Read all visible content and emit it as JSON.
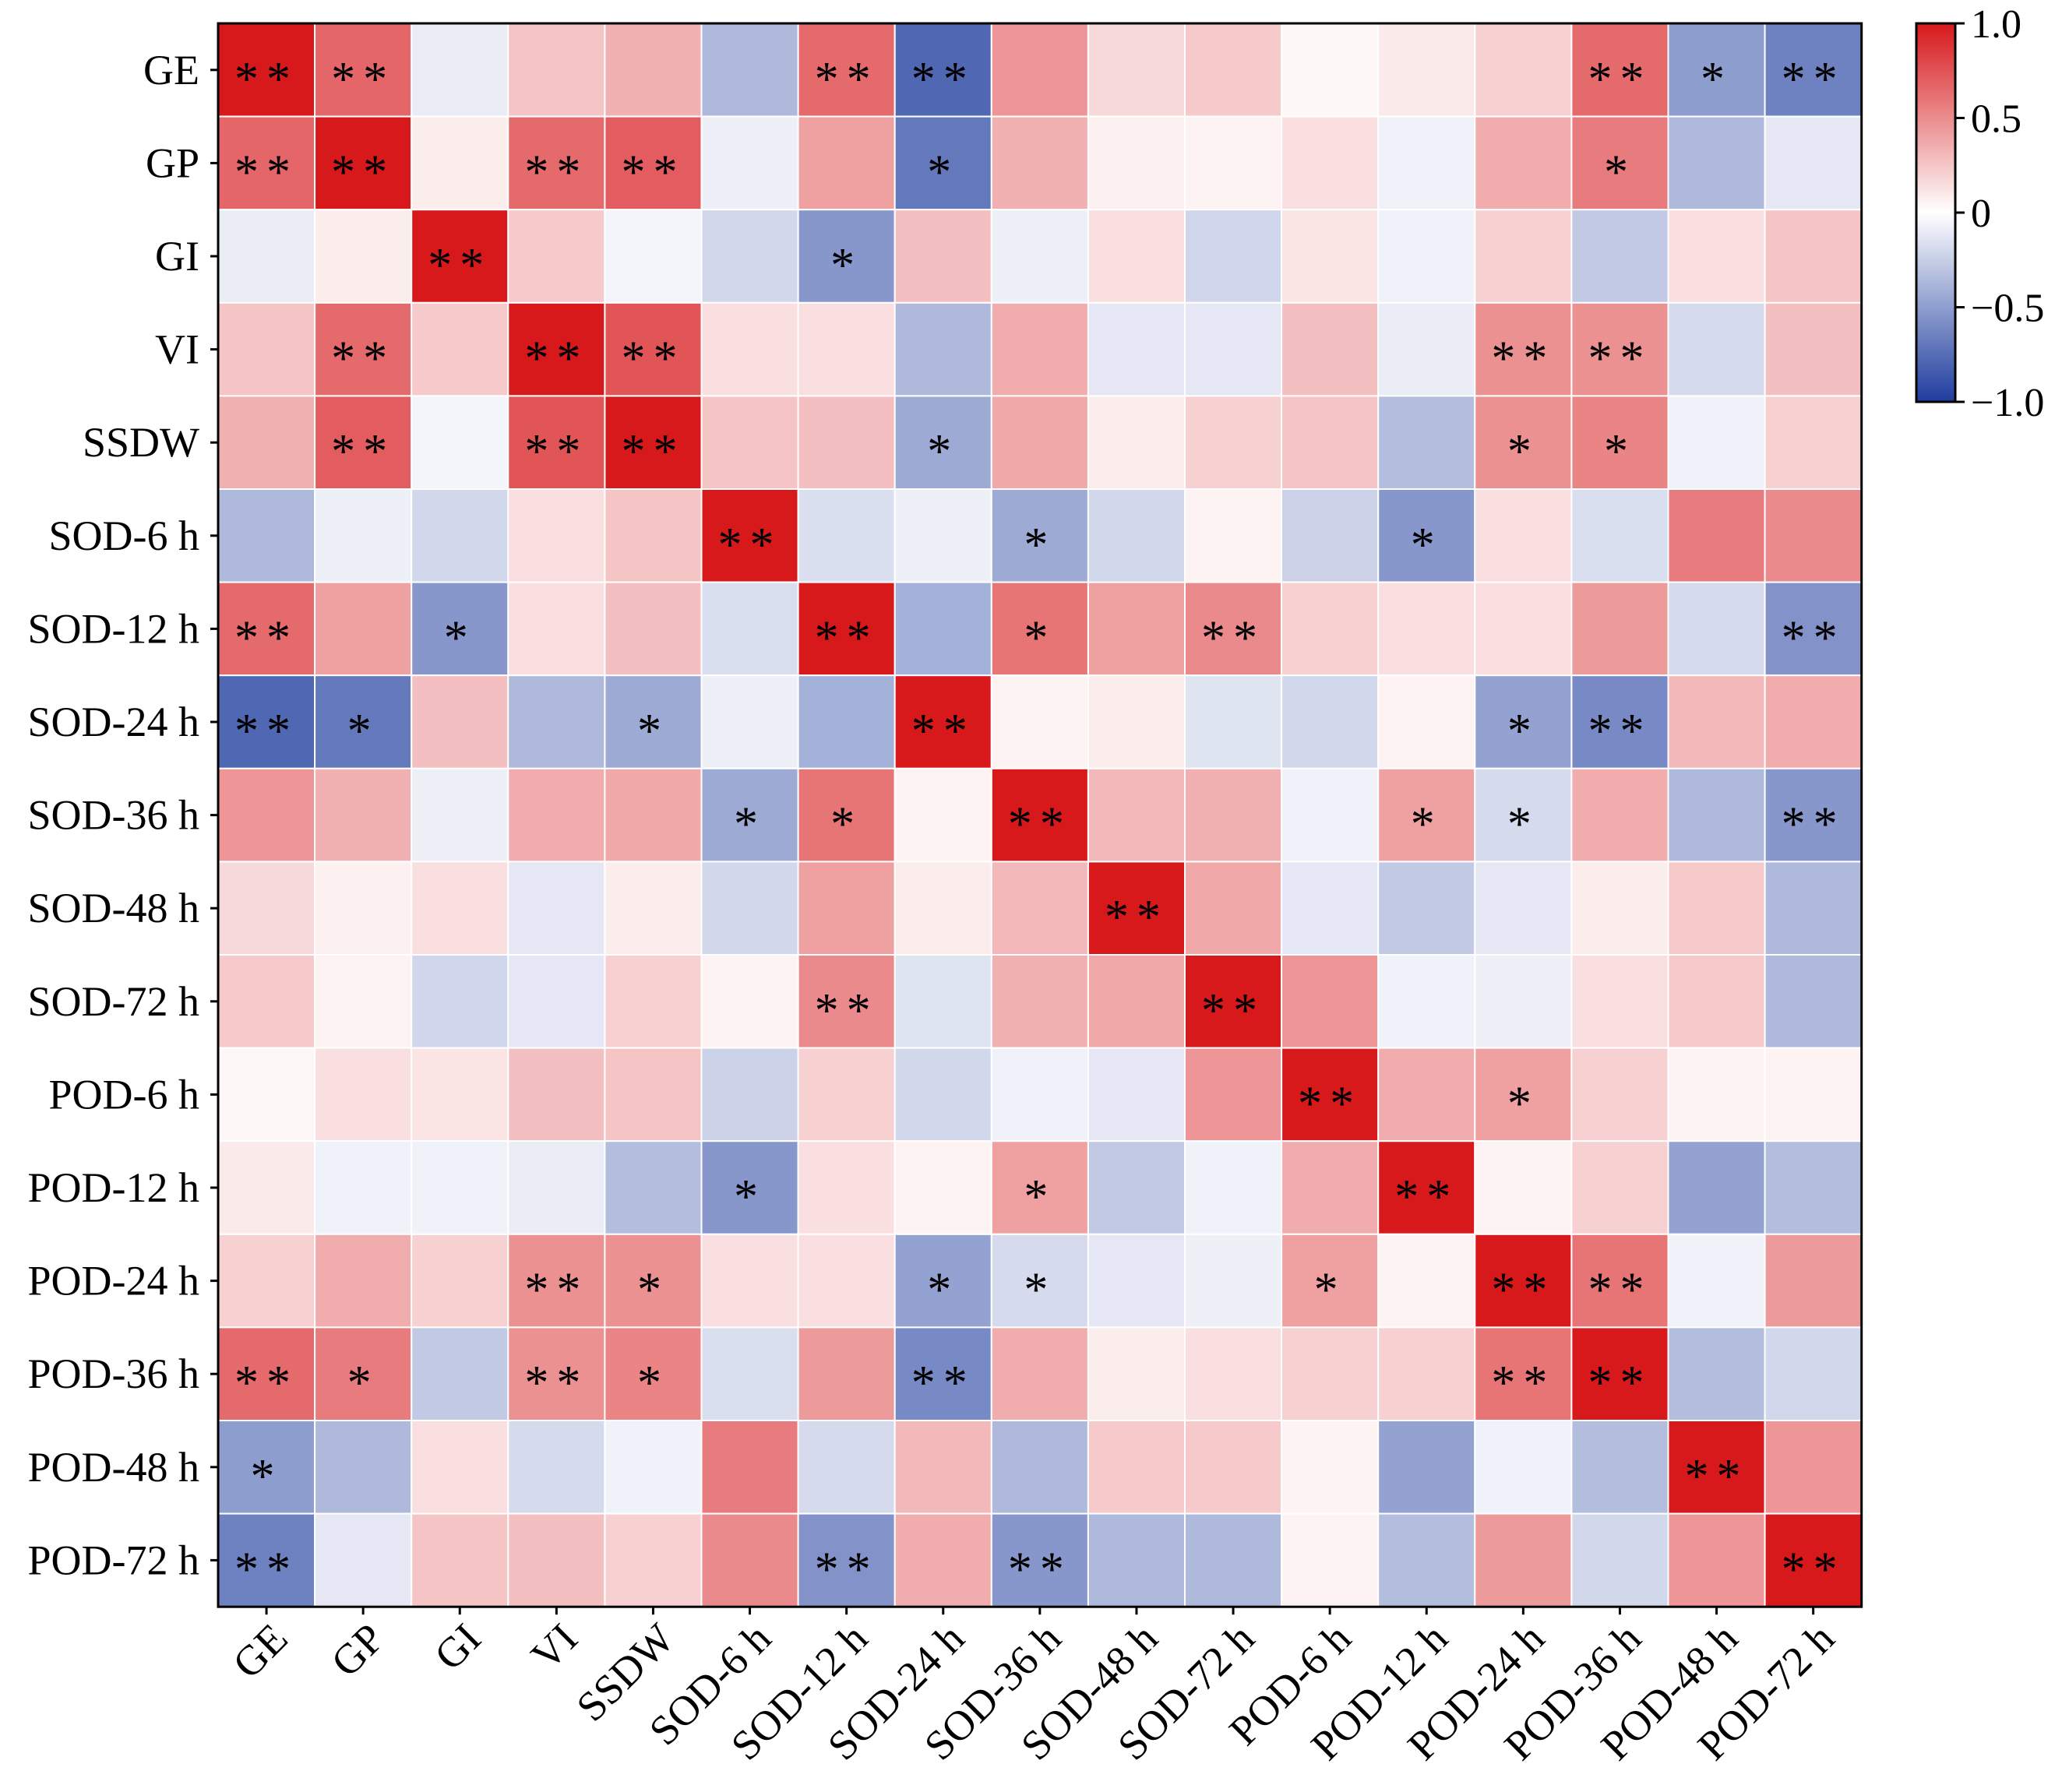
{
  "chart_data": {
    "type": "heatmap",
    "title": "",
    "xlabel": "",
    "ylabel": "",
    "rows": [
      "GE",
      "GP",
      "GI",
      "VI",
      "SSDW",
      "SOD-6 h",
      "SOD-12 h",
      "SOD-24 h",
      "SOD-36 h",
      "SOD-48 h",
      "SOD-72 h",
      "POD-6 h",
      "POD-12 h",
      "POD-24 h",
      "POD-36 h",
      "POD-48 h",
      "POD-72 h"
    ],
    "columns": [
      "GE",
      "GP",
      "GI",
      "VI",
      "SSDW",
      "SOD-6 h",
      "SOD-12 h",
      "SOD-24 h",
      "SOD-36 h",
      "SOD-48 h",
      "SOD-72 h",
      "POD-6 h",
      "POD-12 h",
      "POD-24 h",
      "POD-36 h",
      "POD-48 h",
      "POD-72 h"
    ],
    "values": [
      [
        1.0,
        0.62,
        -0.06,
        0.2,
        0.28,
        -0.3,
        0.6,
        -0.75,
        0.4,
        0.12,
        0.18,
        0.02,
        0.06,
        0.15,
        0.6,
        -0.45,
        -0.6
      ],
      [
        0.62,
        1.0,
        0.05,
        0.6,
        0.66,
        -0.05,
        0.35,
        -0.65,
        0.28,
        0.04,
        0.03,
        0.1,
        -0.04,
        0.3,
        0.52,
        -0.3,
        -0.08
      ],
      [
        -0.06,
        0.05,
        1.0,
        0.18,
        -0.03,
        -0.15,
        -0.48,
        0.22,
        -0.05,
        0.1,
        -0.16,
        0.08,
        -0.04,
        0.15,
        -0.22,
        0.1,
        0.2
      ],
      [
        0.2,
        0.6,
        0.18,
        1.0,
        0.7,
        0.1,
        0.1,
        -0.3,
        0.3,
        -0.08,
        -0.08,
        0.22,
        -0.06,
        0.42,
        0.42,
        -0.14,
        0.22
      ],
      [
        0.28,
        0.66,
        -0.03,
        0.7,
        1.0,
        0.2,
        0.22,
        -0.38,
        0.32,
        0.05,
        0.15,
        0.2,
        -0.28,
        0.42,
        0.48,
        -0.04,
        0.15
      ],
      [
        -0.3,
        -0.05,
        -0.15,
        0.1,
        0.2,
        1.0,
        -0.12,
        -0.05,
        -0.38,
        -0.15,
        0.03,
        -0.18,
        -0.48,
        0.1,
        -0.12,
        0.52,
        0.45
      ],
      [
        0.6,
        0.35,
        -0.48,
        0.1,
        0.22,
        -0.12,
        1.0,
        -0.35,
        0.55,
        0.35,
        0.45,
        0.15,
        0.1,
        0.1,
        0.38,
        -0.14,
        -0.5
      ],
      [
        -0.75,
        -0.65,
        0.22,
        -0.3,
        -0.38,
        -0.05,
        -0.35,
        1.0,
        0.03,
        0.05,
        -0.1,
        -0.15,
        0.03,
        -0.42,
        -0.55,
        0.25,
        0.3
      ],
      [
        0.4,
        0.28,
        -0.05,
        0.3,
        0.32,
        -0.38,
        0.55,
        0.03,
        1.0,
        0.25,
        0.28,
        -0.04,
        0.35,
        -0.14,
        0.3,
        -0.3,
        -0.48
      ],
      [
        0.12,
        0.04,
        0.1,
        -0.08,
        0.05,
        -0.15,
        0.35,
        0.05,
        0.25,
        1.0,
        0.32,
        -0.08,
        -0.22,
        -0.08,
        0.05,
        0.18,
        -0.3
      ],
      [
        0.18,
        0.03,
        -0.16,
        -0.08,
        0.15,
        0.03,
        0.45,
        -0.1,
        0.28,
        0.32,
        1.0,
        0.4,
        -0.04,
        -0.05,
        0.1,
        0.18,
        -0.3
      ],
      [
        0.02,
        0.1,
        0.08,
        0.22,
        0.2,
        -0.18,
        0.15,
        -0.15,
        -0.04,
        -0.08,
        0.4,
        1.0,
        0.3,
        0.35,
        0.15,
        0.03,
        0.03
      ],
      [
        0.06,
        -0.04,
        -0.04,
        -0.06,
        -0.28,
        -0.48,
        0.1,
        0.03,
        0.35,
        -0.22,
        -0.04,
        0.3,
        1.0,
        0.03,
        0.15,
        -0.42,
        -0.28
      ],
      [
        0.15,
        0.3,
        0.15,
        0.42,
        0.42,
        0.1,
        0.1,
        -0.42,
        -0.14,
        -0.08,
        -0.05,
        0.35,
        0.03,
        1.0,
        0.55,
        -0.04,
        0.38
      ],
      [
        0.6,
        0.52,
        -0.22,
        0.42,
        0.48,
        -0.12,
        0.38,
        -0.55,
        0.3,
        0.05,
        0.1,
        0.15,
        0.15,
        0.55,
        1.0,
        -0.28,
        -0.15
      ],
      [
        -0.45,
        -0.3,
        0.1,
        -0.14,
        -0.04,
        0.52,
        -0.14,
        0.25,
        -0.3,
        0.18,
        0.18,
        0.03,
        -0.42,
        -0.04,
        -0.28,
        1.0,
        0.4
      ],
      [
        -0.6,
        -0.08,
        0.2,
        0.22,
        0.15,
        0.45,
        -0.5,
        0.3,
        -0.48,
        -0.3,
        -0.3,
        0.03,
        -0.28,
        0.38,
        -0.15,
        0.4,
        1.0
      ]
    ],
    "significance": [
      [
        "**",
        "**",
        "",
        "",
        "",
        "",
        "**",
        "**",
        "",
        "",
        "",
        "",
        "",
        "",
        "**",
        "*",
        "**"
      ],
      [
        "**",
        "**",
        "",
        "**",
        "**",
        "",
        "",
        "*",
        "",
        "",
        "",
        "",
        "",
        "",
        "*",
        "",
        ""
      ],
      [
        "",
        "",
        "**",
        "",
        "",
        "",
        "*",
        "",
        "",
        "",
        "",
        "",
        "",
        "",
        "",
        "",
        ""
      ],
      [
        "",
        "**",
        "",
        "**",
        "**",
        "",
        "",
        "",
        "",
        "",
        "",
        "",
        "",
        "**",
        "**",
        "",
        ""
      ],
      [
        "",
        "**",
        "",
        "**",
        "**",
        "",
        "",
        "*",
        "",
        "",
        "",
        "",
        "",
        "*",
        "*",
        "",
        ""
      ],
      [
        "",
        "",
        "",
        "",
        "",
        "**",
        "",
        "",
        "*",
        "",
        "",
        "",
        "*",
        "",
        "",
        "",
        ""
      ],
      [
        "**",
        "",
        "*",
        "",
        "",
        "",
        "**",
        "",
        "*",
        "",
        "**",
        "",
        "",
        "",
        "",
        "",
        "**"
      ],
      [
        "**",
        "*",
        "",
        "",
        "*",
        "",
        "",
        "**",
        "",
        "",
        "",
        "",
        "",
        "*",
        "**",
        "",
        ""
      ],
      [
        "",
        "",
        "",
        "",
        "",
        "*",
        "*",
        "",
        "**",
        "",
        "",
        "",
        "*",
        "*",
        "",
        "",
        "**"
      ],
      [
        "",
        "",
        "",
        "",
        "",
        "",
        "",
        "",
        "",
        "**",
        "",
        "",
        "",
        "",
        "",
        "",
        ""
      ],
      [
        "",
        "",
        "",
        "",
        "",
        "",
        "**",
        "",
        "",
        "",
        "**",
        "",
        "",
        "",
        "",
        "",
        ""
      ],
      [
        "",
        "",
        "",
        "",
        "",
        "",
        "",
        "",
        "",
        "",
        "",
        "**",
        "",
        "*",
        "",
        "",
        ""
      ],
      [
        "",
        "",
        "",
        "",
        "",
        "*",
        "",
        "",
        "*",
        "",
        "",
        "",
        "**",
        "",
        "",
        "",
        ""
      ],
      [
        "",
        "",
        "",
        "**",
        "*",
        "",
        "",
        "*",
        "*",
        "",
        "",
        "*",
        "",
        "**",
        "**",
        "",
        ""
      ],
      [
        "**",
        "*",
        "",
        "**",
        "*",
        "",
        "",
        "**",
        "",
        "",
        "",
        "",
        "",
        "**",
        "**",
        "",
        ""
      ],
      [
        "*",
        "",
        "",
        "",
        "",
        "",
        "",
        "",
        "",
        "",
        "",
        "",
        "",
        "",
        "",
        "**",
        ""
      ],
      [
        "**",
        "",
        "",
        "",
        "",
        "",
        "**",
        "",
        "**",
        "",
        "",
        "",
        "",
        "",
        "",
        "",
        "**"
      ]
    ],
    "colorbar": {
      "range": [
        -1.0,
        1.0
      ],
      "ticks": [
        1.0,
        0.5,
        0,
        -0.5,
        -1.0
      ],
      "tick_labels": [
        "1.0",
        "0.5",
        "0",
        "−0.5",
        "−1.0"
      ],
      "colors": {
        "negative": "#1f3d9e",
        "zero": "#ffffff",
        "positive": "#d7191c"
      }
    }
  }
}
